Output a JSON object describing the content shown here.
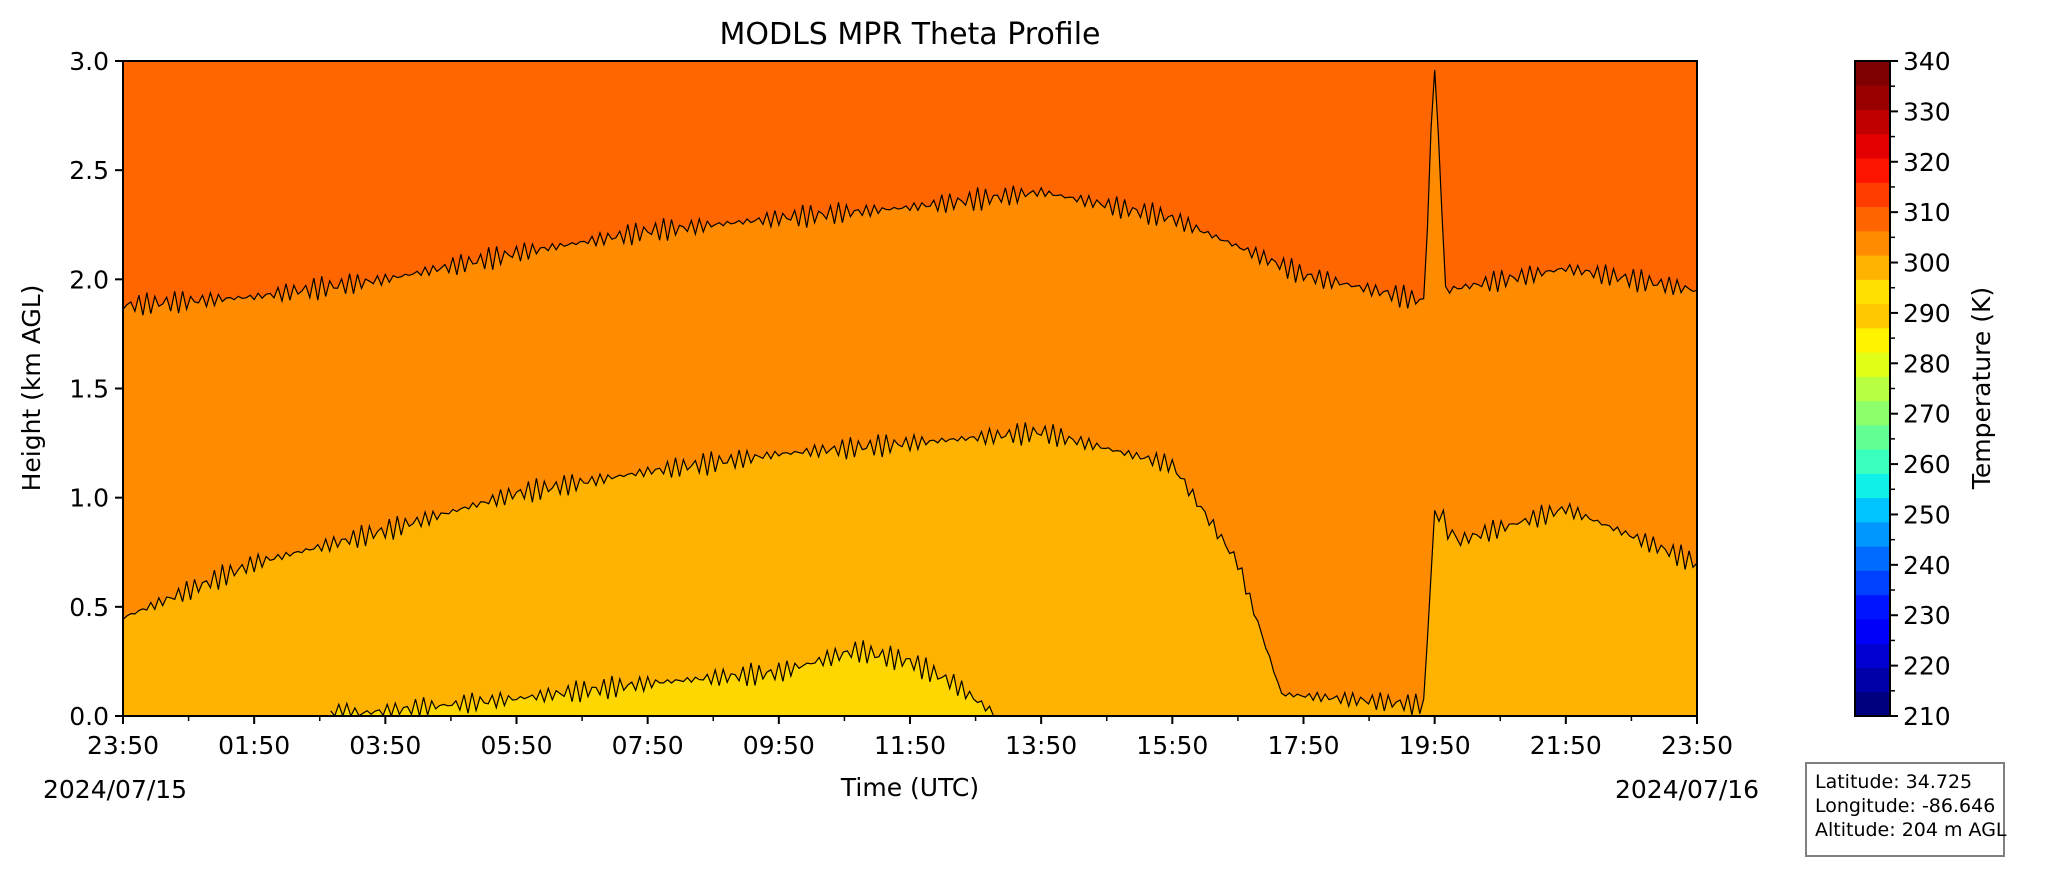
{
  "chart_data": {
    "type": "heatmap",
    "title": "MODLS MPR Theta Profile",
    "xlabel": "Time (UTC)",
    "ylabel": "Height (km AGL)",
    "ylim": [
      0,
      3.0
    ],
    "yticks": [
      "0.0",
      "0.5",
      "1.0",
      "1.5",
      "2.0",
      "2.5",
      "3.0"
    ],
    "xticks": [
      "23:50",
      "01:50",
      "03:50",
      "05:50",
      "07:50",
      "09:50",
      "11:50",
      "13:50",
      "15:50",
      "17:50",
      "19:50",
      "21:50",
      "23:50"
    ],
    "start_date": "2024/07/15",
    "end_date": "2024/07/16",
    "colorbar": {
      "label": "Temperature (K)",
      "range": [
        210,
        340
      ],
      "ticks": [
        "210",
        "220",
        "230",
        "240",
        "250",
        "260",
        "270",
        "280",
        "290",
        "300",
        "310",
        "320",
        "330",
        "340"
      ],
      "levels": [
        210,
        215,
        220,
        225,
        230,
        235,
        240,
        245,
        250,
        255,
        260,
        265,
        270,
        275,
        280,
        285,
        290,
        295,
        300,
        305,
        310,
        315,
        320,
        325,
        330,
        335,
        340
      ],
      "colors": [
        "#00007f",
        "#0000a8",
        "#0000d1",
        "#0000fa",
        "#0014ff",
        "#0040ff",
        "#006cff",
        "#0098ff",
        "#00c4ff",
        "#0ff0e8",
        "#39ffbe",
        "#63ff94",
        "#8dff6a",
        "#b7ff40",
        "#e1ff16",
        "#fff300",
        "#ffc800",
        "#ffe000",
        "#ffb300",
        "#ff8c00",
        "#ff6400",
        "#ff3c00",
        "#ff1400",
        "#e40000",
        "#c00000",
        "#9b0000",
        "#7f0000"
      ]
    },
    "contour_levels_K": [
      300,
      305,
      310
    ],
    "fill_colors": {
      "above_310": "#ff6600",
      "305_310": "#ff8c00",
      "300_305": "#ffb300",
      "below_300": "#ffd700"
    },
    "contours": {
      "k310_height_km": {
        "time": [
          "23:50",
          "01:50",
          "03:50",
          "05:50",
          "07:50",
          "09:50",
          "11:50",
          "13:50",
          "15:50",
          "17:50",
          "19:40",
          "19:50",
          "20:00",
          "21:50",
          "23:50"
        ],
        "height": [
          1.88,
          1.92,
          2.0,
          2.12,
          2.22,
          2.28,
          2.33,
          2.4,
          2.28,
          2.02,
          1.9,
          3.0,
          1.95,
          2.05,
          1.95
        ]
      },
      "k305_height_km": {
        "time": [
          "23:50",
          "01:50",
          "03:50",
          "05:50",
          "07:50",
          "09:50",
          "11:50",
          "13:50",
          "15:50",
          "16:50",
          "17:30",
          "19:40",
          "19:50",
          "20:10",
          "21:50",
          "23:50"
        ],
        "height": [
          0.45,
          0.7,
          0.85,
          1.02,
          1.12,
          1.2,
          1.25,
          1.3,
          1.15,
          0.7,
          0.1,
          0.05,
          0.95,
          0.8,
          0.95,
          0.7
        ]
      },
      "k300_height_km": {
        "time": [
          "03:00",
          "05:50",
          "07:50",
          "09:50",
          "11:00",
          "11:50",
          "12:30",
          "13:10"
        ],
        "height": [
          0.0,
          0.08,
          0.15,
          0.2,
          0.3,
          0.25,
          0.15,
          0.0
        ]
      }
    }
  },
  "info": {
    "latitude": "Latitude: 34.725",
    "longitude": "Longitude: -86.646",
    "altitude": "Altitude: 204 m AGL"
  }
}
